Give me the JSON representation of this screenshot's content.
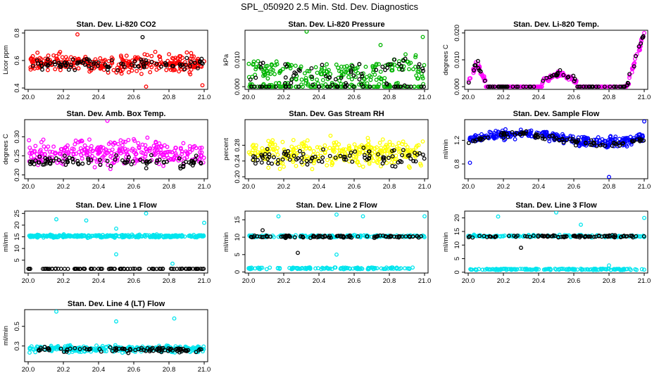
{
  "page_title": "SPL_050920  2.5 Min. Std. Dev. Diagnostics",
  "colors": {
    "red": "#ff0000",
    "green": "#00b400",
    "magenta": "#ff00ff",
    "yellow": "#ffff00",
    "blue": "#0000ff",
    "cyan": "#00e5ee",
    "black": "#000000"
  },
  "chart_data": [
    {
      "type": "scatter",
      "title": "Stan. Dev. Li-820 CO2",
      "ylabel": "Licor ppm",
      "xlim": [
        19.98,
        21.02
      ],
      "ylim": [
        0.39,
        0.82
      ],
      "xticks": [
        20.0,
        20.2,
        20.4,
        20.6,
        20.8,
        21.0
      ],
      "xtick_labels": [
        "20.0",
        "20.2",
        "20.4",
        "20.6",
        "20.8",
        "21.0"
      ],
      "yticks": [
        0.4,
        0.6,
        0.8
      ],
      "ytick_labels": [
        "0.4",
        "0.6",
        "0.8"
      ],
      "series": [
        {
          "name": "primary",
          "color": "red",
          "pattern": "band",
          "params": {
            "base": 0.58,
            "spread": 0.09
          }
        },
        {
          "name": "secondary",
          "color": "black",
          "pattern": "band",
          "params": {
            "base": 0.57,
            "spread": 0.06
          }
        }
      ],
      "outliers": [
        {
          "x": 20.28,
          "y": 0.79,
          "color": "red"
        },
        {
          "x": 20.65,
          "y": 0.77,
          "color": "black"
        },
        {
          "x": 20.67,
          "y": 0.41,
          "color": "red"
        },
        {
          "x": 20.99,
          "y": 0.42,
          "color": "red"
        }
      ]
    },
    {
      "type": "scatter",
      "title": "Stan. Dev. Li-820 Pressure",
      "ylabel": "kPa",
      "xlim": [
        19.98,
        21.02
      ],
      "ylim": [
        -0.001,
        0.021
      ],
      "xticks": [
        20.0,
        20.2,
        20.4,
        20.6,
        20.8,
        21.0
      ],
      "xtick_labels": [
        "20.0",
        "20.2",
        "20.4",
        "20.6",
        "20.8",
        "21.0"
      ],
      "yticks": [
        0.0,
        0.01
      ],
      "ytick_labels": [
        "0.000",
        "0.010"
      ],
      "series": [
        {
          "name": "primary",
          "color": "green",
          "pattern": "pressure",
          "params": {
            "base": 0.005,
            "spread": 0.004
          }
        },
        {
          "name": "secondary",
          "color": "black",
          "pattern": "pressure",
          "params": {
            "base": 0.004,
            "spread": 0.003
          }
        }
      ],
      "outliers": [
        {
          "x": 20.33,
          "y": 0.0205,
          "color": "green"
        },
        {
          "x": 20.99,
          "y": 0.0185,
          "color": "green"
        },
        {
          "x": 20.75,
          "y": 0.0155,
          "color": "green"
        }
      ]
    },
    {
      "type": "scatter",
      "title": "Stan. Dev. Li-820 Temp.",
      "ylabel": "degrees C",
      "xlim": [
        19.98,
        21.02
      ],
      "ylim": [
        -0.001,
        0.021
      ],
      "xticks": [
        20.0,
        20.2,
        20.4,
        20.6,
        20.8,
        21.0
      ],
      "xtick_labels": [
        "20.0",
        "20.2",
        "20.4",
        "20.6",
        "20.8",
        "21.0"
      ],
      "yticks": [
        0.0,
        0.01,
        0.02
      ],
      "ytick_labels": [
        "0.000",
        "0.010",
        "0.020"
      ],
      "series": [
        {
          "name": "primary",
          "color": "magenta",
          "pattern": "temp",
          "params": {
            "base": 0.0,
            "spread": 0.0
          }
        },
        {
          "name": "secondary",
          "color": "black",
          "pattern": "temp",
          "params": {
            "base": 0.0,
            "spread": 0.0
          }
        }
      ],
      "outliers": []
    },
    {
      "type": "scatter",
      "title": "Stan. Dev. Amb. Box Temp.",
      "ylabel": "degrees C",
      "xlim": [
        19.98,
        21.02
      ],
      "ylim": [
        0.19,
        0.345
      ],
      "xticks": [
        20.0,
        20.2,
        20.4,
        20.6,
        20.8,
        21.0
      ],
      "xtick_labels": [
        "20.0",
        "20.2",
        "20.4",
        "20.6",
        "20.8",
        "21.0"
      ],
      "yticks": [
        0.2,
        0.25,
        0.3
      ],
      "ytick_labels": [
        "0.20",
        "0.25",
        "0.30"
      ],
      "series": [
        {
          "name": "primary",
          "color": "magenta",
          "pattern": "band",
          "params": {
            "base": 0.258,
            "spread": 0.045
          }
        },
        {
          "name": "secondary",
          "color": "black",
          "pattern": "band",
          "params": {
            "base": 0.235,
            "spread": 0.022
          }
        }
      ],
      "outliers": [
        {
          "x": 20.45,
          "y": 0.342,
          "color": "magenta"
        }
      ]
    },
    {
      "type": "scatter",
      "title": "Stan. Dev. Gas Stream RH",
      "ylabel": "percent",
      "xlim": [
        19.98,
        21.02
      ],
      "ylim": [
        0.195,
        0.345
      ],
      "xticks": [
        20.0,
        20.2,
        20.4,
        20.6,
        20.8,
        21.0
      ],
      "xtick_labels": [
        "20.0",
        "20.2",
        "20.4",
        "20.6",
        "20.8",
        "21.0"
      ],
      "yticks": [
        0.2,
        0.24,
        0.28
      ],
      "ytick_labels": [
        "0.20",
        "0.24",
        "0.28"
      ],
      "series": [
        {
          "name": "primary",
          "color": "yellow",
          "pattern": "band",
          "params": {
            "base": 0.262,
            "spread": 0.05
          }
        },
        {
          "name": "secondary",
          "color": "black",
          "pattern": "band",
          "params": {
            "base": 0.25,
            "spread": 0.03
          }
        }
      ],
      "outliers": []
    },
    {
      "type": "scatter",
      "title": "Stan. Dev. Sample Flow",
      "ylabel": "ml/min",
      "xlim": [
        19.98,
        21.02
      ],
      "ylim": [
        0.55,
        1.55
      ],
      "xticks": [
        20.0,
        20.2,
        20.4,
        20.6,
        20.8,
        21.0
      ],
      "xtick_labels": [
        "20.0",
        "20.2",
        "20.4",
        "20.6",
        "20.8",
        "21.0"
      ],
      "yticks": [
        0.8,
        1.2
      ],
      "ytick_labels": [
        "0.8",
        "1.2"
      ],
      "series": [
        {
          "name": "primary",
          "color": "blue",
          "pattern": "wave",
          "params": {
            "base": 1.2,
            "spread": 0.12
          }
        },
        {
          "name": "secondary",
          "color": "black",
          "pattern": "wave",
          "params": {
            "base": 1.18,
            "spread": 0.08
          }
        }
      ],
      "outliers": [
        {
          "x": 20.8,
          "y": 0.58,
          "color": "blue"
        },
        {
          "x": 21.0,
          "y": 1.52,
          "color": "blue"
        },
        {
          "x": 20.01,
          "y": 0.82,
          "color": "blue"
        }
      ]
    },
    {
      "type": "scatter",
      "title": "Stan. Dev. Line 1 Flow",
      "ylabel": "ml/min",
      "xlim": [
        19.98,
        21.02
      ],
      "ylim": [
        -0.5,
        26
      ],
      "xticks": [
        20.0,
        20.2,
        20.4,
        20.6,
        20.8,
        21.0
      ],
      "xtick_labels": [
        "20.0",
        "20.2",
        "20.4",
        "20.6",
        "20.8",
        "21.0"
      ],
      "yticks": [
        5,
        10,
        15,
        20,
        25
      ],
      "ytick_labels": [
        "5",
        "10",
        "15",
        "20",
        "25"
      ],
      "series": [
        {
          "name": "primary",
          "color": "cyan",
          "pattern": "flat",
          "params": {
            "base": 15.3,
            "spread": 0.8
          }
        },
        {
          "name": "secondary",
          "color": "black",
          "pattern": "flat",
          "params": {
            "base": 1.3,
            "spread": 0.1
          }
        }
      ],
      "outliers": [
        {
          "x": 20.16,
          "y": 22.5,
          "color": "cyan"
        },
        {
          "x": 20.33,
          "y": 22,
          "color": "cyan"
        },
        {
          "x": 20.5,
          "y": 18.5,
          "color": "cyan"
        },
        {
          "x": 20.5,
          "y": 7.5,
          "color": "cyan"
        },
        {
          "x": 20.67,
          "y": 25,
          "color": "cyan"
        },
        {
          "x": 20.82,
          "y": 3.5,
          "color": "cyan"
        },
        {
          "x": 21.0,
          "y": 21,
          "color": "cyan"
        }
      ]
    },
    {
      "type": "scatter",
      "title": "Stan. Dev. Line 2 Flow",
      "ylabel": "ml/min",
      "xlim": [
        19.98,
        21.02
      ],
      "ylim": [
        -0.3,
        17.5
      ],
      "xticks": [
        20.0,
        20.2,
        20.4,
        20.6,
        20.8,
        21.0
      ],
      "xtick_labels": [
        "20.0",
        "20.2",
        "20.4",
        "20.6",
        "20.8",
        "21.0"
      ],
      "yticks": [
        0,
        5,
        10,
        15
      ],
      "ytick_labels": [
        "0",
        "5",
        "10",
        "15"
      ],
      "series": [
        {
          "name": "primary",
          "color": "cyan",
          "pattern": "twolevel",
          "params": {
            "base": 10.3,
            "spread": 0.5
          }
        },
        {
          "name": "secondary",
          "color": "black",
          "pattern": "flat",
          "params": {
            "base": 10.2,
            "spread": 0.6
          }
        }
      ],
      "outliers": [
        {
          "x": 20.17,
          "y": 16,
          "color": "cyan"
        },
        {
          "x": 20.5,
          "y": 16.5,
          "color": "cyan"
        },
        {
          "x": 20.5,
          "y": 5,
          "color": "cyan"
        },
        {
          "x": 20.65,
          "y": 16,
          "color": "cyan"
        },
        {
          "x": 21.0,
          "y": 16,
          "color": "cyan"
        },
        {
          "x": 20.28,
          "y": 5.5,
          "color": "black"
        },
        {
          "x": 20.08,
          "y": 12,
          "color": "black"
        }
      ]
    },
    {
      "type": "scatter",
      "title": "Stan. Dev. Line 3 Flow",
      "ylabel": "ml/min",
      "xlim": [
        19.98,
        21.02
      ],
      "ylim": [
        -0.3,
        22.5
      ],
      "xticks": [
        20.0,
        20.2,
        20.4,
        20.6,
        20.8,
        21.0
      ],
      "xtick_labels": [
        "20.0",
        "20.2",
        "20.4",
        "20.6",
        "20.8",
        "21.0"
      ],
      "yticks": [
        0,
        5,
        10,
        15,
        20
      ],
      "ytick_labels": [
        "0",
        "5",
        "10",
        "15",
        "20"
      ],
      "series": [
        {
          "name": "primary",
          "color": "cyan",
          "pattern": "twolevel",
          "params": {
            "base": 13.3,
            "spread": 0.6
          }
        },
        {
          "name": "secondary",
          "color": "black",
          "pattern": "flat",
          "params": {
            "base": 13.2,
            "spread": 0.6
          }
        }
      ],
      "outliers": [
        {
          "x": 20.17,
          "y": 20.5,
          "color": "cyan"
        },
        {
          "x": 20.5,
          "y": 22,
          "color": "cyan"
        },
        {
          "x": 20.64,
          "y": 17.5,
          "color": "cyan"
        },
        {
          "x": 21.0,
          "y": 20,
          "color": "cyan"
        },
        {
          "x": 20.8,
          "y": 2.5,
          "color": "cyan"
        },
        {
          "x": 20.3,
          "y": 9,
          "color": "black"
        }
      ]
    },
    {
      "type": "scatter",
      "title": "Stan. Dev. Line 4 (LT) Flow",
      "ylabel": "ml/min",
      "xlim": [
        19.98,
        21.02
      ],
      "ylim": [
        0.14,
        0.67
      ],
      "xticks": [
        20.0,
        20.2,
        20.4,
        20.6,
        20.8,
        21.0
      ],
      "xtick_labels": [
        "20.0",
        "20.2",
        "20.4",
        "20.6",
        "20.8",
        "21.0"
      ],
      "yticks": [
        0.3,
        0.5
      ],
      "ytick_labels": [
        "0.3",
        "0.5"
      ],
      "series": [
        {
          "name": "primary",
          "color": "cyan",
          "pattern": "band",
          "params": {
            "base": 0.27,
            "spread": 0.05
          }
        },
        {
          "name": "secondary",
          "color": "black",
          "pattern": "band",
          "params": {
            "base": 0.26,
            "spread": 0.04
          }
        }
      ],
      "outliers": [
        {
          "x": 20.16,
          "y": 0.65,
          "color": "cyan"
        },
        {
          "x": 20.5,
          "y": 0.55,
          "color": "cyan"
        },
        {
          "x": 20.83,
          "y": 0.58,
          "color": "cyan"
        }
      ]
    }
  ]
}
